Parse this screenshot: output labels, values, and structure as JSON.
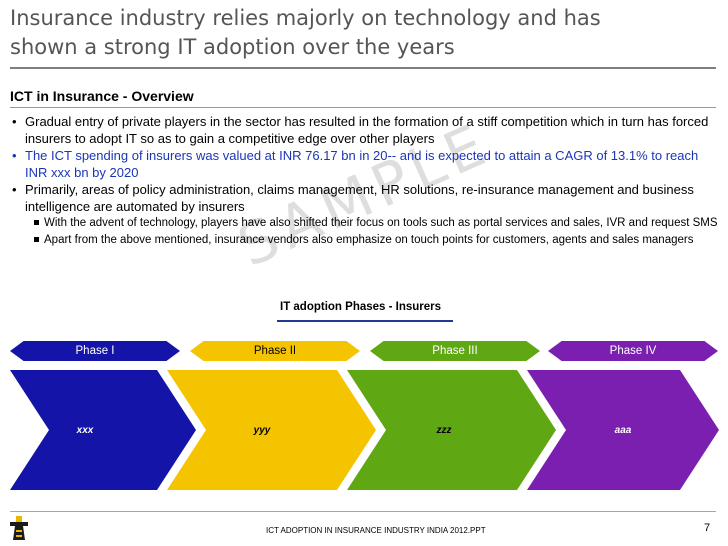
{
  "slide": {
    "title_line1": "Insurance industry relies majorly on technology and has",
    "title_line2": "shown a strong IT adoption over the years",
    "section_heading": "ICT in Insurance - Overview",
    "bullets": {
      "b1": "Gradual entry of private players in the sector has resulted in the formation of a stiff competition which in turn has forced insurers to adopt IT so as to gain a competitive edge over other players",
      "b2": "The ICT spending of insurers was valued at INR 76.17 bn in 20-- and is expected to attain a CAGR of 13.1% to reach INR xxx bn by 2020",
      "b3": "Primarily, areas of policy administration, claims management, HR solutions, re-insurance management and business intelligence are automated by insurers",
      "sub1": "With the advent of technology, players have also shifted their focus on tools such as portal services and sales, IVR and request SMS",
      "sub2": "Apart from the above mentioned, insurance vendors also emphasize on touch points for customers, agents and sales managers"
    },
    "watermark": "SAMPLE",
    "diagram_title": "IT adoption Phases - Insurers",
    "phases": [
      {
        "label": "Phase I",
        "value": "xxx",
        "color": "#1414a8"
      },
      {
        "label": "Phase II",
        "value": "yyy",
        "color": "#f5c400"
      },
      {
        "label": "Phase III",
        "value": "zzz",
        "color": "#5fa814"
      },
      {
        "label": "Phase IV",
        "value": "aaa",
        "color": "#7a1fb0"
      }
    ],
    "footer_text": "ICT ADOPTION IN INSURANCE INDUSTRY INDIA 2012.PPT",
    "page_number": "7"
  }
}
